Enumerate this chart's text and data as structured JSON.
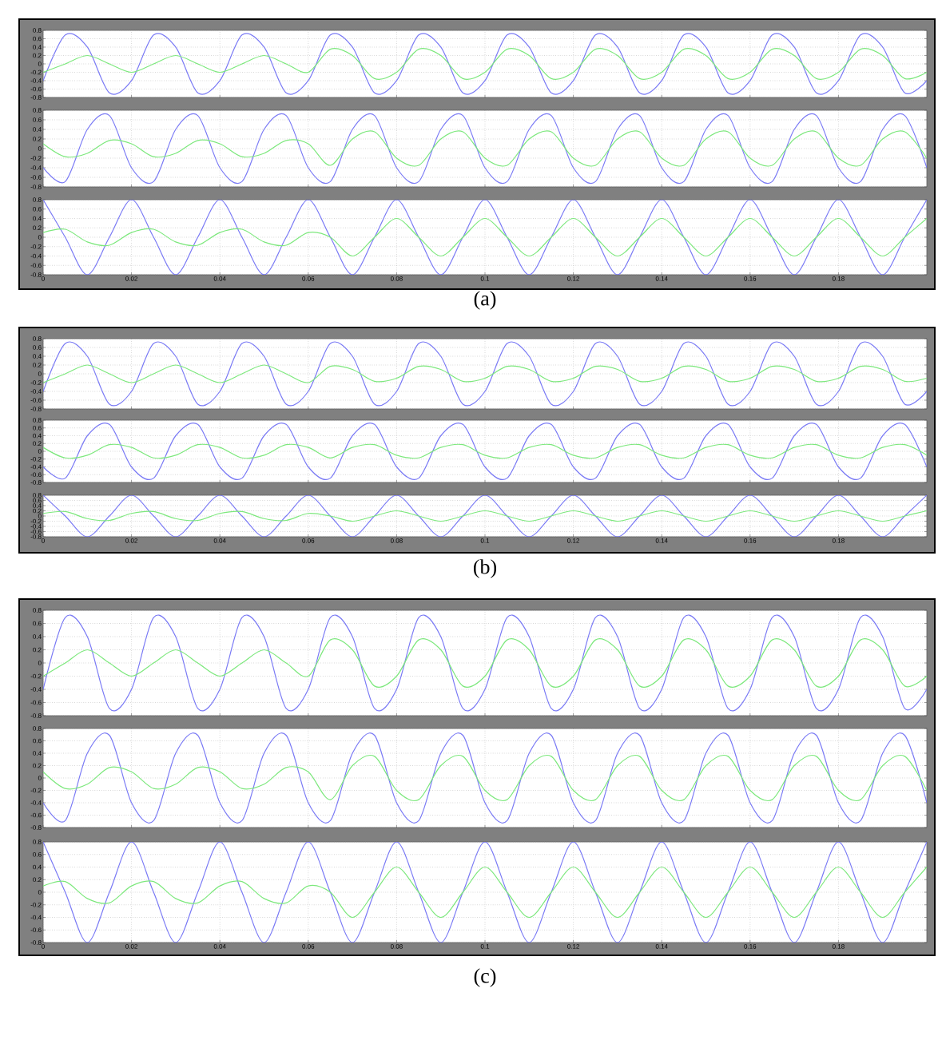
{
  "chart_data": [
    {
      "type": "line",
      "x": [
        0,
        0.005,
        0.01,
        0.015,
        0.02,
        0.025,
        0.03,
        0.035,
        0.04,
        0.045,
        0.05,
        0.055,
        0.06,
        0.065,
        0.07,
        0.075,
        0.08,
        0.085,
        0.09,
        0.095,
        0.1,
        0.105,
        0.11,
        0.115,
        0.12,
        0.125,
        0.13,
        0.135,
        0.14,
        0.145,
        0.15,
        0.155,
        0.16,
        0.165,
        0.17,
        0.175,
        0.18,
        0.185,
        0.19,
        0.195,
        0.2
      ],
      "xlim": [
        0,
        0.2
      ],
      "ylim": [
        -0.8,
        0.8
      ],
      "xticks": [
        0,
        0.02,
        0.04,
        0.06,
        0.08,
        0.1,
        0.12,
        0.14,
        0.16,
        0.18
      ],
      "yticks": [
        -0.8,
        -0.6,
        -0.4,
        -0.2,
        0,
        0.2,
        0.4,
        0.6,
        0.8
      ],
      "grid": true,
      "tick_labels": "y",
      "series": [
        {
          "color": "#7b7bf5",
          "values": [
            -0.4,
            0.69,
            0.4,
            -0.69,
            -0.4,
            0.69,
            0.4,
            -0.69,
            -0.4,
            0.69,
            0.4,
            -0.69,
            -0.4,
            0.69,
            0.4,
            -0.69,
            -0.4,
            0.69,
            0.4,
            -0.69,
            -0.4,
            0.69,
            0.4,
            -0.69,
            -0.4,
            0.69,
            0.4,
            -0.69,
            -0.4,
            0.69,
            0.4,
            -0.69,
            -0.4,
            0.69,
            0.4,
            -0.69,
            -0.4,
            0.69,
            0.4,
            -0.69,
            -0.4
          ]
        },
        {
          "color": "#7de87d",
          "values": [
            -0.2,
            0,
            0.2,
            0,
            -0.2,
            0,
            0.2,
            0,
            -0.2,
            0,
            0.2,
            0,
            -0.2,
            0.35,
            0.2,
            -0.35,
            -0.2,
            0.35,
            0.2,
            -0.35,
            -0.2,
            0.35,
            0.2,
            -0.35,
            -0.2,
            0.35,
            0.2,
            -0.35,
            -0.2,
            0.35,
            0.2,
            -0.35,
            -0.2,
            0.35,
            0.2,
            -0.35,
            -0.2,
            0.35,
            0.2,
            -0.35,
            -0.2
          ]
        }
      ]
    },
    {
      "type": "line",
      "x": [
        0,
        0.005,
        0.01,
        0.015,
        0.02,
        0.025,
        0.03,
        0.035,
        0.04,
        0.045,
        0.05,
        0.055,
        0.06,
        0.065,
        0.07,
        0.075,
        0.08,
        0.085,
        0.09,
        0.095,
        0.1,
        0.105,
        0.11,
        0.115,
        0.12,
        0.125,
        0.13,
        0.135,
        0.14,
        0.145,
        0.15,
        0.155,
        0.16,
        0.165,
        0.17,
        0.175,
        0.18,
        0.185,
        0.19,
        0.195,
        0.2
      ],
      "xlim": [
        0,
        0.2
      ],
      "ylim": [
        -0.8,
        0.8
      ],
      "xticks": [
        0,
        0.02,
        0.04,
        0.06,
        0.08,
        0.1,
        0.12,
        0.14,
        0.16,
        0.18
      ],
      "yticks": [
        -0.8,
        -0.6,
        -0.4,
        -0.2,
        0,
        0.2,
        0.4,
        0.6,
        0.8
      ],
      "grid": true,
      "tick_labels": "y",
      "series": [
        {
          "color": "#7b7bf5",
          "values": [
            -0.4,
            -0.69,
            0.4,
            0.69,
            -0.4,
            -0.69,
            0.4,
            0.69,
            -0.4,
            -0.69,
            0.4,
            0.69,
            -0.4,
            -0.69,
            0.4,
            0.69,
            -0.4,
            -0.69,
            0.4,
            0.69,
            -0.4,
            -0.69,
            0.4,
            0.69,
            -0.4,
            -0.69,
            0.4,
            0.69,
            -0.4,
            -0.69,
            0.4,
            0.69,
            -0.4,
            -0.69,
            0.4,
            0.69,
            -0.4,
            -0.69,
            0.4,
            0.69,
            -0.4
          ]
        },
        {
          "color": "#7de87d",
          "values": [
            0.1,
            -0.17,
            -0.1,
            0.17,
            0.1,
            -0.17,
            -0.1,
            0.17,
            0.1,
            -0.17,
            -0.1,
            0.17,
            0.1,
            -0.35,
            0.2,
            0.35,
            -0.2,
            -0.35,
            0.2,
            0.35,
            -0.2,
            -0.35,
            0.2,
            0.35,
            -0.2,
            -0.35,
            0.2,
            0.35,
            -0.2,
            -0.35,
            0.2,
            0.35,
            -0.2,
            -0.35,
            0.2,
            0.35,
            -0.2,
            -0.35,
            0.2,
            0.35,
            -0.2
          ]
        }
      ]
    },
    {
      "type": "line",
      "x": [
        0,
        0.005,
        0.01,
        0.015,
        0.02,
        0.025,
        0.03,
        0.035,
        0.04,
        0.045,
        0.05,
        0.055,
        0.06,
        0.065,
        0.07,
        0.075,
        0.08,
        0.085,
        0.09,
        0.095,
        0.1,
        0.105,
        0.11,
        0.115,
        0.12,
        0.125,
        0.13,
        0.135,
        0.14,
        0.145,
        0.15,
        0.155,
        0.16,
        0.165,
        0.17,
        0.175,
        0.18,
        0.185,
        0.19,
        0.195,
        0.2
      ],
      "xlim": [
        0,
        0.2
      ],
      "ylim": [
        -0.8,
        0.8
      ],
      "xticks": [
        0,
        0.02,
        0.04,
        0.06,
        0.08,
        0.1,
        0.12,
        0.14,
        0.16,
        0.18
      ],
      "yticks": [
        -0.8,
        -0.6,
        -0.4,
        -0.2,
        0,
        0.2,
        0.4,
        0.6,
        0.8
      ],
      "grid": true,
      "annotations": [
        "(a)"
      ],
      "series": [
        {
          "color": "#7b7bf5",
          "values": [
            0.8,
            0,
            -0.8,
            0,
            0.8,
            0,
            -0.8,
            0,
            0.8,
            0,
            -0.8,
            0,
            0.8,
            0,
            -0.8,
            0,
            0.8,
            0,
            -0.8,
            0,
            0.8,
            0,
            -0.8,
            0,
            0.8,
            0,
            -0.8,
            0,
            0.8,
            0,
            -0.8,
            0,
            0.8,
            0,
            -0.8,
            0,
            0.8,
            0,
            -0.8,
            0,
            0.8
          ]
        },
        {
          "color": "#7de87d",
          "values": [
            0.1,
            0.17,
            -0.1,
            -0.17,
            0.1,
            0.17,
            -0.1,
            -0.17,
            0.1,
            0.17,
            -0.1,
            -0.17,
            0.1,
            0,
            -0.4,
            0,
            0.4,
            0,
            -0.4,
            0,
            0.4,
            0,
            -0.4,
            0,
            0.4,
            0,
            -0.4,
            0,
            0.4,
            0,
            -0.4,
            0,
            0.4,
            0,
            -0.4,
            0,
            0.4,
            0,
            -0.4,
            0,
            0.4
          ]
        }
      ]
    },
    {
      "type": "line",
      "x": [
        0,
        0.005,
        0.01,
        0.015,
        0.02,
        0.025,
        0.03,
        0.035,
        0.04,
        0.045,
        0.05,
        0.055,
        0.06,
        0.065,
        0.07,
        0.075,
        0.08,
        0.085,
        0.09,
        0.095,
        0.1,
        0.105,
        0.11,
        0.115,
        0.12,
        0.125,
        0.13,
        0.135,
        0.14,
        0.145,
        0.15,
        0.155,
        0.16,
        0.165,
        0.17,
        0.175,
        0.18,
        0.185,
        0.19,
        0.195,
        0.2
      ],
      "xlim": [
        0,
        0.2
      ],
      "ylim": [
        -0.8,
        0.8
      ],
      "xticks": [
        0,
        0.02,
        0.04,
        0.06,
        0.08,
        0.1,
        0.12,
        0.14,
        0.16,
        0.18
      ],
      "yticks": [
        -0.8,
        -0.6,
        -0.4,
        -0.2,
        0,
        0.2,
        0.4,
        0.6,
        0.8
      ],
      "grid": true,
      "tick_labels": "y",
      "series": [
        {
          "color": "#7b7bf5",
          "values": [
            -0.4,
            0.69,
            0.4,
            -0.69,
            -0.4,
            0.69,
            0.4,
            -0.69,
            -0.4,
            0.69,
            0.4,
            -0.69,
            -0.4,
            0.69,
            0.4,
            -0.69,
            -0.4,
            0.69,
            0.4,
            -0.69,
            -0.4,
            0.69,
            0.4,
            -0.69,
            -0.4,
            0.69,
            0.4,
            -0.69,
            -0.4,
            0.69,
            0.4,
            -0.69,
            -0.4,
            0.69,
            0.4,
            -0.69,
            -0.4,
            0.69,
            0.4,
            -0.69,
            -0.4
          ]
        },
        {
          "color": "#7de87d",
          "values": [
            -0.2,
            0,
            0.2,
            0,
            -0.2,
            0,
            0.2,
            0,
            -0.2,
            0,
            0.2,
            0,
            -0.2,
            0.17,
            0.1,
            -0.17,
            -0.1,
            0.17,
            0.1,
            -0.17,
            -0.1,
            0.17,
            0.1,
            -0.17,
            -0.1,
            0.17,
            0.1,
            -0.17,
            -0.1,
            0.17,
            0.1,
            -0.17,
            -0.1,
            0.17,
            0.1,
            -0.17,
            -0.1,
            0.17,
            0.1,
            -0.17,
            -0.1
          ]
        }
      ]
    },
    {
      "type": "line",
      "x": [
        0,
        0.005,
        0.01,
        0.015,
        0.02,
        0.025,
        0.03,
        0.035,
        0.04,
        0.045,
        0.05,
        0.055,
        0.06,
        0.065,
        0.07,
        0.075,
        0.08,
        0.085,
        0.09,
        0.095,
        0.1,
        0.105,
        0.11,
        0.115,
        0.12,
        0.125,
        0.13,
        0.135,
        0.14,
        0.145,
        0.15,
        0.155,
        0.16,
        0.165,
        0.17,
        0.175,
        0.18,
        0.185,
        0.19,
        0.195,
        0.2
      ],
      "xlim": [
        0,
        0.2
      ],
      "ylim": [
        -0.8,
        0.8
      ],
      "xticks": [
        0,
        0.02,
        0.04,
        0.06,
        0.08,
        0.1,
        0.12,
        0.14,
        0.16,
        0.18
      ],
      "yticks": [
        -0.8,
        -0.6,
        -0.4,
        -0.2,
        0,
        0.2,
        0.4,
        0.6,
        0.8
      ],
      "grid": true,
      "tick_labels": "y",
      "series": [
        {
          "color": "#7b7bf5",
          "values": [
            -0.4,
            -0.69,
            0.4,
            0.69,
            -0.4,
            -0.69,
            0.4,
            0.69,
            -0.4,
            -0.69,
            0.4,
            0.69,
            -0.4,
            -0.69,
            0.4,
            0.69,
            -0.4,
            -0.69,
            0.4,
            0.69,
            -0.4,
            -0.69,
            0.4,
            0.69,
            -0.4,
            -0.69,
            0.4,
            0.69,
            -0.4,
            -0.69,
            0.4,
            0.69,
            -0.4,
            -0.69,
            0.4,
            0.69,
            -0.4,
            -0.69,
            0.4,
            0.69,
            -0.4
          ]
        },
        {
          "color": "#7de87d",
          "values": [
            0.1,
            -0.17,
            -0.1,
            0.17,
            0.1,
            -0.17,
            -0.1,
            0.17,
            0.1,
            -0.17,
            -0.1,
            0.17,
            0.1,
            -0.17,
            0.1,
            0.17,
            -0.1,
            -0.17,
            0.1,
            0.17,
            -0.1,
            -0.17,
            0.1,
            0.17,
            -0.1,
            -0.17,
            0.1,
            0.17,
            -0.1,
            -0.17,
            0.1,
            0.17,
            -0.1,
            -0.17,
            0.1,
            0.17,
            -0.1,
            -0.17,
            0.1,
            0.17,
            -0.1
          ]
        }
      ]
    },
    {
      "type": "line",
      "x": [
        0,
        0.005,
        0.01,
        0.015,
        0.02,
        0.025,
        0.03,
        0.035,
        0.04,
        0.045,
        0.05,
        0.055,
        0.06,
        0.065,
        0.07,
        0.075,
        0.08,
        0.085,
        0.09,
        0.095,
        0.1,
        0.105,
        0.11,
        0.115,
        0.12,
        0.125,
        0.13,
        0.135,
        0.14,
        0.145,
        0.15,
        0.155,
        0.16,
        0.165,
        0.17,
        0.175,
        0.18,
        0.185,
        0.19,
        0.195,
        0.2
      ],
      "xlim": [
        0,
        0.2
      ],
      "ylim": [
        -0.8,
        0.8
      ],
      "xticks": [
        0,
        0.02,
        0.04,
        0.06,
        0.08,
        0.1,
        0.12,
        0.14,
        0.16,
        0.18
      ],
      "yticks": [
        -0.8,
        -0.6,
        -0.4,
        -0.2,
        0,
        0.2,
        0.4,
        0.6,
        0.8
      ],
      "grid": true,
      "annotations": [
        "(b)"
      ],
      "series": [
        {
          "color": "#7b7bf5",
          "values": [
            0.8,
            0,
            -0.8,
            0,
            0.8,
            0,
            -0.8,
            0,
            0.8,
            0,
            -0.8,
            0,
            0.8,
            0,
            -0.8,
            0,
            0.8,
            0,
            -0.8,
            0,
            0.8,
            0,
            -0.8,
            0,
            0.8,
            0,
            -0.8,
            0,
            0.8,
            0,
            -0.8,
            0,
            0.8,
            0,
            -0.8,
            0,
            0.8,
            0,
            -0.8,
            0,
            0.8
          ]
        },
        {
          "color": "#7de87d",
          "values": [
            0.1,
            0.17,
            -0.1,
            -0.17,
            0.1,
            0.17,
            -0.1,
            -0.17,
            0.1,
            0.17,
            -0.1,
            -0.17,
            0.1,
            0,
            -0.2,
            0,
            0.2,
            0,
            -0.2,
            0,
            0.2,
            0,
            -0.2,
            0,
            0.2,
            0,
            -0.2,
            0,
            0.2,
            0,
            -0.2,
            0,
            0.2,
            0,
            -0.2,
            0,
            0.2,
            0,
            -0.2,
            0,
            0.2
          ]
        }
      ]
    },
    {
      "type": "line",
      "x": [
        0,
        0.005,
        0.01,
        0.015,
        0.02,
        0.025,
        0.03,
        0.035,
        0.04,
        0.045,
        0.05,
        0.055,
        0.06,
        0.065,
        0.07,
        0.075,
        0.08,
        0.085,
        0.09,
        0.095,
        0.1,
        0.105,
        0.11,
        0.115,
        0.12,
        0.125,
        0.13,
        0.135,
        0.14,
        0.145,
        0.15,
        0.155,
        0.16,
        0.165,
        0.17,
        0.175,
        0.18,
        0.185,
        0.19,
        0.195,
        0.2
      ],
      "xlim": [
        0,
        0.2
      ],
      "ylim": [
        -0.8,
        0.8
      ],
      "xticks": [
        0,
        0.02,
        0.04,
        0.06,
        0.08,
        0.1,
        0.12,
        0.14,
        0.16,
        0.18
      ],
      "yticks": [
        -0.8,
        -0.6,
        -0.4,
        -0.2,
        0,
        0.2,
        0.4,
        0.6,
        0.8
      ],
      "grid": true,
      "tick_labels": "y",
      "series": [
        {
          "color": "#7b7bf5",
          "values": [
            -0.4,
            0.69,
            0.4,
            -0.69,
            -0.4,
            0.69,
            0.4,
            -0.69,
            -0.4,
            0.69,
            0.4,
            -0.69,
            -0.4,
            0.69,
            0.4,
            -0.69,
            -0.4,
            0.69,
            0.4,
            -0.69,
            -0.4,
            0.69,
            0.4,
            -0.69,
            -0.4,
            0.69,
            0.4,
            -0.69,
            -0.4,
            0.69,
            0.4,
            -0.69,
            -0.4,
            0.69,
            0.4,
            -0.69,
            -0.4,
            0.69,
            0.4,
            -0.69,
            -0.4
          ]
        },
        {
          "color": "#7de87d",
          "values": [
            -0.2,
            0,
            0.2,
            0,
            -0.2,
            0,
            0.2,
            0,
            -0.2,
            0,
            0.2,
            0,
            -0.2,
            0.35,
            0.2,
            -0.35,
            -0.2,
            0.35,
            0.2,
            -0.35,
            -0.2,
            0.35,
            0.2,
            -0.35,
            -0.2,
            0.35,
            0.2,
            -0.35,
            -0.2,
            0.35,
            0.2,
            -0.35,
            -0.2,
            0.35,
            0.2,
            -0.35,
            -0.2,
            0.35,
            0.2,
            -0.35,
            -0.2
          ]
        }
      ]
    },
    {
      "type": "line",
      "x": [
        0,
        0.005,
        0.01,
        0.015,
        0.02,
        0.025,
        0.03,
        0.035,
        0.04,
        0.045,
        0.05,
        0.055,
        0.06,
        0.065,
        0.07,
        0.075,
        0.08,
        0.085,
        0.09,
        0.095,
        0.1,
        0.105,
        0.11,
        0.115,
        0.12,
        0.125,
        0.13,
        0.135,
        0.14,
        0.145,
        0.15,
        0.155,
        0.16,
        0.165,
        0.17,
        0.175,
        0.18,
        0.185,
        0.19,
        0.195,
        0.2
      ],
      "xlim": [
        0,
        0.2
      ],
      "ylim": [
        -0.8,
        0.8
      ],
      "xticks": [
        0,
        0.02,
        0.04,
        0.06,
        0.08,
        0.1,
        0.12,
        0.14,
        0.16,
        0.18
      ],
      "yticks": [
        -0.8,
        -0.6,
        -0.4,
        -0.2,
        0,
        0.2,
        0.4,
        0.6,
        0.8
      ],
      "grid": true,
      "tick_labels": "y",
      "series": [
        {
          "color": "#7b7bf5",
          "values": [
            -0.4,
            -0.69,
            0.4,
            0.69,
            -0.4,
            -0.69,
            0.4,
            0.69,
            -0.4,
            -0.69,
            0.4,
            0.69,
            -0.4,
            -0.69,
            0.4,
            0.69,
            -0.4,
            -0.69,
            0.4,
            0.69,
            -0.4,
            -0.69,
            0.4,
            0.69,
            -0.4,
            -0.69,
            0.4,
            0.69,
            -0.4,
            -0.69,
            0.4,
            0.69,
            -0.4,
            -0.69,
            0.4,
            0.69,
            -0.4,
            -0.69,
            0.4,
            0.69,
            -0.4
          ]
        },
        {
          "color": "#7de87d",
          "values": [
            0.1,
            -0.17,
            -0.1,
            0.17,
            0.1,
            -0.17,
            -0.1,
            0.17,
            0.1,
            -0.17,
            -0.1,
            0.17,
            0.1,
            -0.35,
            0.2,
            0.35,
            -0.2,
            -0.35,
            0.2,
            0.35,
            -0.2,
            -0.35,
            0.2,
            0.35,
            -0.2,
            -0.35,
            0.2,
            0.35,
            -0.2,
            -0.35,
            0.2,
            0.35,
            -0.2,
            -0.35,
            0.2,
            0.35,
            -0.2,
            -0.35,
            0.2,
            0.35,
            -0.2
          ]
        }
      ]
    },
    {
      "type": "line",
      "x": [
        0,
        0.005,
        0.01,
        0.015,
        0.02,
        0.025,
        0.03,
        0.035,
        0.04,
        0.045,
        0.05,
        0.055,
        0.06,
        0.065,
        0.07,
        0.075,
        0.08,
        0.085,
        0.09,
        0.095,
        0.1,
        0.105,
        0.11,
        0.115,
        0.12,
        0.125,
        0.13,
        0.135,
        0.14,
        0.145,
        0.15,
        0.155,
        0.16,
        0.165,
        0.17,
        0.175,
        0.18,
        0.185,
        0.19,
        0.195,
        0.2
      ],
      "xlim": [
        0,
        0.2
      ],
      "ylim": [
        -0.8,
        0.8
      ],
      "xticks": [
        0,
        0.02,
        0.04,
        0.06,
        0.08,
        0.1,
        0.12,
        0.14,
        0.16,
        0.18
      ],
      "yticks": [
        -0.8,
        -0.6,
        -0.4,
        -0.2,
        0,
        0.2,
        0.4,
        0.6,
        0.8
      ],
      "grid": true,
      "annotations": [
        "(c)"
      ],
      "series": [
        {
          "color": "#7b7bf5",
          "values": [
            0.8,
            0,
            -0.8,
            0,
            0.8,
            0,
            -0.8,
            0,
            0.8,
            0,
            -0.8,
            0,
            0.8,
            0,
            -0.8,
            0,
            0.8,
            0,
            -0.8,
            0,
            0.8,
            0,
            -0.8,
            0,
            0.8,
            0,
            -0.8,
            0,
            0.8,
            0,
            -0.8,
            0,
            0.8,
            0,
            -0.8,
            0,
            0.8,
            0,
            -0.8,
            0,
            0.8
          ]
        },
        {
          "color": "#7de87d",
          "values": [
            0.1,
            0.17,
            -0.1,
            -0.17,
            0.1,
            0.17,
            -0.1,
            -0.17,
            0.1,
            0.17,
            -0.1,
            -0.17,
            0.1,
            0,
            -0.4,
            0,
            0.4,
            0,
            -0.4,
            0,
            0.4,
            0,
            -0.4,
            0,
            0.4,
            0,
            -0.4,
            0,
            0.4,
            0,
            -0.4,
            0,
            0.4,
            0,
            -0.4,
            0,
            0.4,
            0,
            -0.4,
            0,
            0.4
          ]
        }
      ]
    }
  ]
}
